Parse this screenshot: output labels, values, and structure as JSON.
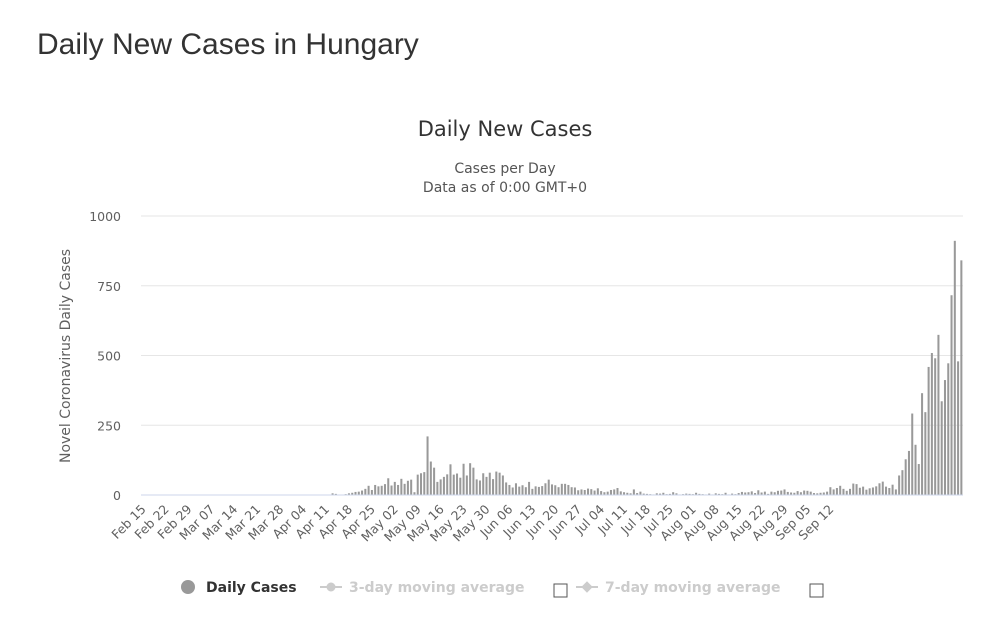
{
  "page": {
    "heading": "Daily New Cases in Hungary"
  },
  "chart_data": {
    "type": "bar",
    "title": "Daily New Cases",
    "subtitle": "Cases per Day",
    "subtitle2": "Data as of 0:00 GMT+0",
    "ylabel": "Novel Coronavirus Daily Cases",
    "xlabel": "",
    "ylim": [
      0,
      1000
    ],
    "yticks": [
      0,
      250,
      500,
      750,
      1000
    ],
    "grid": true,
    "legend_position": "bottom-center",
    "x_tick_labels": [
      "Feb 15",
      "Feb 22",
      "Feb 29",
      "Mar 07",
      "Mar 14",
      "Mar 21",
      "Mar 28",
      "Apr 04",
      "Apr 11",
      "Apr 18",
      "Apr 25",
      "May 02",
      "May 09",
      "May 16",
      "May 23",
      "May 30",
      "Jun 06",
      "Jun 13",
      "Jun 20",
      "Jun 27",
      "Jul 04",
      "Jul 11",
      "Jul 18",
      "Jul 25",
      "Aug 01",
      "Aug 08",
      "Aug 15",
      "Aug 22",
      "Aug 29",
      "Sep 05",
      "Sep 12"
    ],
    "x_start": "Feb 15",
    "x_end": "Sep 14",
    "series": [
      {
        "name": "Daily Cases",
        "color": "#999999",
        "values": [
          0,
          0,
          0,
          0,
          0,
          0,
          0,
          0,
          0,
          0,
          0,
          0,
          0,
          0,
          0,
          0,
          0,
          0,
          0,
          0,
          0,
          0,
          0,
          0,
          0,
          0,
          0,
          0,
          0,
          0,
          0,
          0,
          0,
          0,
          0,
          0,
          0,
          0,
          0,
          0,
          0,
          0,
          0,
          0,
          0,
          0,
          0,
          0,
          0,
          0,
          0,
          0,
          0,
          0,
          0,
          0,
          0,
          0,
          6,
          4,
          0,
          0,
          3,
          6,
          8,
          11,
          12,
          16,
          22,
          33,
          18,
          36,
          31,
          33,
          39,
          60,
          34,
          47,
          36,
          58,
          40,
          51,
          55,
          10,
          73,
          78,
          82,
          210,
          120,
          98,
          47,
          56,
          65,
          74,
          110,
          73,
          77,
          62,
          112,
          70,
          114,
          98,
          56,
          52,
          78,
          65,
          80,
          57,
          84,
          80,
          70,
          45,
          36,
          27,
          42,
          30,
          35,
          28,
          47,
          22,
          31,
          29,
          32,
          42,
          55,
          38,
          35,
          28,
          40,
          40,
          36,
          28,
          27,
          17,
          20,
          18,
          23,
          21,
          16,
          24,
          14,
          10,
          12,
          18,
          20,
          25,
          13,
          10,
          8,
          6,
          20,
          7,
          12,
          5,
          4,
          3,
          2,
          6,
          5,
          8,
          3,
          4,
          10,
          6,
          2,
          3,
          5,
          4,
          3,
          8,
          4,
          3,
          2,
          5,
          2,
          6,
          4,
          3,
          8,
          2,
          5,
          3,
          7,
          11,
          9,
          10,
          13,
          7,
          17,
          9,
          12,
          4,
          12,
          10,
          15,
          16,
          20,
          11,
          9,
          8,
          14,
          10,
          16,
          15,
          12,
          7,
          6,
          8,
          9,
          12,
          28,
          20,
          25,
          33,
          22,
          15,
          22,
          41,
          39,
          26,
          30,
          19,
          24,
          27,
          31,
          42,
          48,
          30,
          25,
          37,
          20,
          70,
          89,
          128,
          158,
          292,
          180,
          111,
          365,
          297,
          459,
          509,
          490,
          574,
          336,
          412,
          472,
          716,
          911,
          479,
          841
        ]
      },
      {
        "name": "3-day moving average",
        "visible": false
      },
      {
        "name": "7-day moving average",
        "visible": false
      }
    ]
  }
}
